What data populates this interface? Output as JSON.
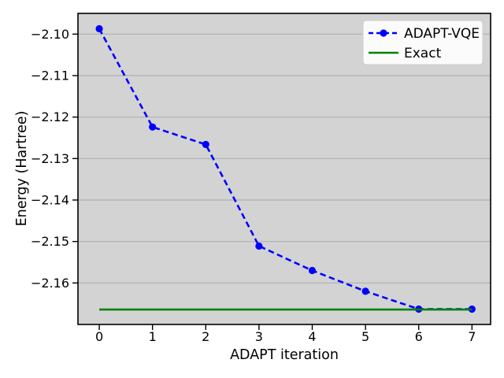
{
  "chart_data": {
    "type": "line",
    "title": "",
    "xlabel": "ADAPT iteration",
    "ylabel": "Energy (Hartree)",
    "x": [
      0,
      1,
      2,
      3,
      4,
      5,
      6,
      7
    ],
    "series": [
      {
        "name": "ADAPT-VQE",
        "color": "#0000ff",
        "line_style": "dashed",
        "marker": "circle",
        "values": [
          -2.0987,
          -2.1224,
          -2.1266,
          -2.1511,
          -2.157,
          -2.162,
          -2.1663,
          -2.1663
        ]
      },
      {
        "name": "Exact",
        "color": "#008000",
        "line_style": "solid",
        "marker": "none",
        "constant_value": -2.1664,
        "x_range": [
          0,
          7
        ]
      }
    ],
    "xlim": [
      -0.4,
      7.35
    ],
    "ylim": [
      -2.17,
      -2.095
    ],
    "xticks": {
      "values": [
        0,
        1,
        2,
        3,
        4,
        5,
        6,
        7
      ],
      "labels": [
        "0",
        "1",
        "2",
        "3",
        "4",
        "5",
        "6",
        "7"
      ]
    },
    "yticks": {
      "values": [
        -2.1,
        -2.11,
        -2.12,
        -2.13,
        -2.14,
        -2.15,
        -2.16
      ],
      "labels": [
        "−2.10",
        "−2.11",
        "−2.12",
        "−2.13",
        "−2.14",
        "−2.15",
        "−2.16"
      ]
    },
    "grid": "horizontal",
    "legend_position": "upper right",
    "colors": {
      "plot_background": "#d3d3d3",
      "grid": "#b0b0b0",
      "spine": "#000000",
      "legend_background": "#ffffff",
      "legend_border": "#cccccc"
    }
  }
}
